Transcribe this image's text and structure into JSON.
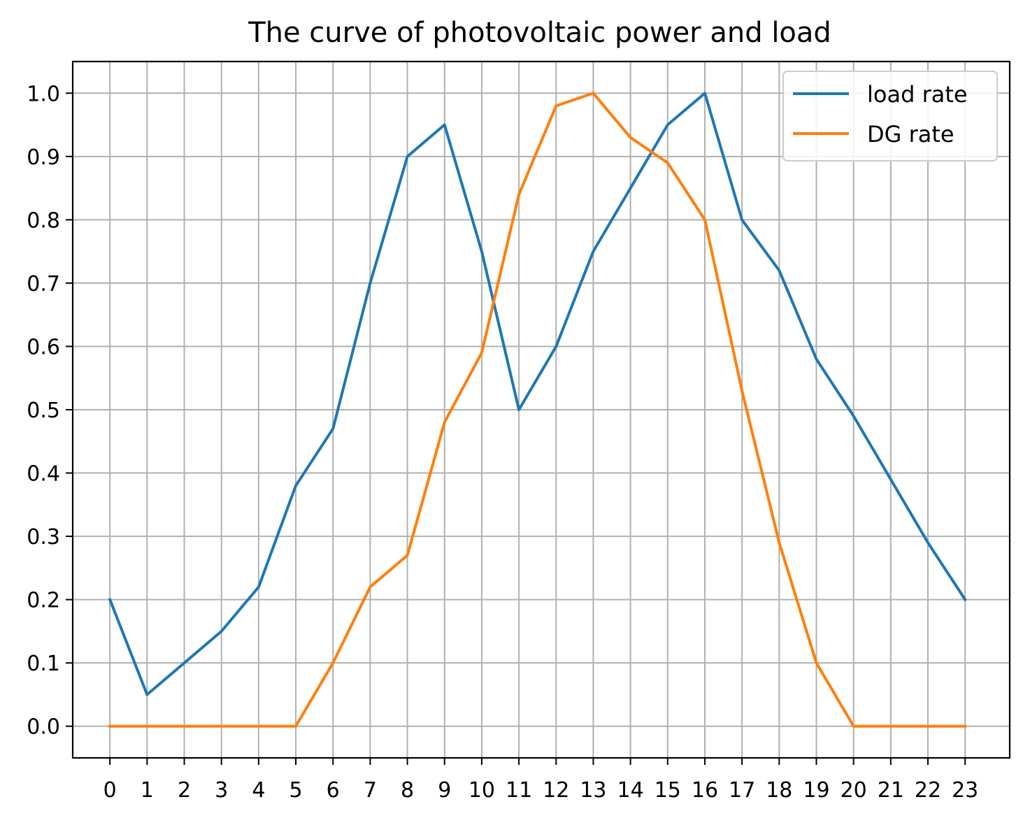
{
  "chart_data": {
    "type": "line",
    "title": "The curve of photovoltaic power and load",
    "xlabel": "",
    "ylabel": "",
    "x": [
      0,
      1,
      2,
      3,
      4,
      5,
      6,
      7,
      8,
      9,
      10,
      11,
      12,
      13,
      14,
      15,
      16,
      17,
      18,
      19,
      20,
      21,
      22,
      23
    ],
    "x_tick_labels": [
      "0",
      "1",
      "2",
      "3",
      "4",
      "5",
      "6",
      "7",
      "8",
      "9",
      "10",
      "11",
      "12",
      "13",
      "14",
      "15",
      "16",
      "17",
      "18",
      "19",
      "20",
      "21",
      "22",
      "23"
    ],
    "xlim": [
      -1,
      24.2
    ],
    "ylim": [
      -0.05,
      1.05
    ],
    "y_ticks": [
      0.0,
      0.1,
      0.2,
      0.3,
      0.4,
      0.5,
      0.6,
      0.7,
      0.8,
      0.9,
      1.0
    ],
    "y_tick_labels": [
      "0.0",
      "0.1",
      "0.2",
      "0.3",
      "0.4",
      "0.5",
      "0.6",
      "0.7",
      "0.8",
      "0.9",
      "1.0"
    ],
    "grid": true,
    "legend_position": "top-right",
    "series": [
      {
        "name": "load rate",
        "color": "#1f77b4",
        "values": [
          0.2,
          0.05,
          0.1,
          0.15,
          0.22,
          0.38,
          0.47,
          0.7,
          0.9,
          0.95,
          0.75,
          0.5,
          0.6,
          0.75,
          0.85,
          0.95,
          1.0,
          0.8,
          0.72,
          0.58,
          0.49,
          0.39,
          0.29,
          0.2
        ]
      },
      {
        "name": "DG rate",
        "color": "#ff7f0e",
        "values": [
          0.0,
          0.0,
          0.0,
          0.0,
          0.0,
          0.0,
          0.1,
          0.22,
          0.27,
          0.48,
          0.59,
          0.84,
          0.98,
          1.0,
          0.93,
          0.89,
          0.8,
          0.53,
          0.29,
          0.1,
          0.0,
          0.0,
          0.0,
          0.0
        ]
      }
    ]
  }
}
